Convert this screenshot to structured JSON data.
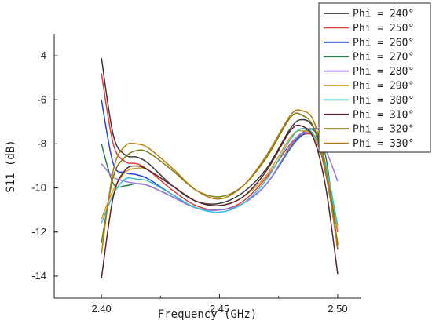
{
  "chart_data": {
    "type": "line",
    "title": "",
    "xlabel": "Frequency (GHz)",
    "ylabel": "S11 (dB)",
    "xlim": [
      2.38,
      2.51
    ],
    "ylim": [
      -15,
      -3
    ],
    "x_ticks": [
      2.4,
      2.45,
      2.5
    ],
    "x_tick_labels": [
      "2.40",
      "2.45",
      "2.50"
    ],
    "y_ticks": [
      -4,
      -6,
      -8,
      -10,
      -12,
      -14
    ],
    "y_tick_labels": [
      "-4",
      "-6",
      "-8",
      "-10",
      "-12",
      "-14"
    ],
    "legend_position": "top-right",
    "grid": false,
    "x": [
      2.4,
      2.405,
      2.41,
      2.415,
      2.42,
      2.43,
      2.44,
      2.45,
      2.46,
      2.47,
      2.48,
      2.485,
      2.49,
      2.495,
      2.5
    ],
    "series": [
      {
        "name": "Phi = 240°",
        "color": "#3a3a3a",
        "values": [
          -4.1,
          -7.6,
          -8.5,
          -8.6,
          -8.9,
          -9.9,
          -10.6,
          -10.7,
          -10.2,
          -9.1,
          -7.3,
          -6.9,
          -7.3,
          -9.0,
          -12.6
        ]
      },
      {
        "name": "Phi = 250°",
        "color": "#e03c3c",
        "values": [
          -4.8,
          -8.0,
          -8.8,
          -8.9,
          -9.2,
          -10.1,
          -10.8,
          -11.0,
          -10.6,
          -9.5,
          -8.0,
          -7.6,
          -7.7,
          -9.2,
          -12.0
        ]
      },
      {
        "name": "Phi = 260°",
        "color": "#2346d6",
        "values": [
          -6.0,
          -8.9,
          -9.3,
          -9.4,
          -9.6,
          -10.3,
          -10.9,
          -11.0,
          -10.7,
          -9.8,
          -8.2,
          -7.6,
          -7.3,
          -7.5,
          -7.8
        ]
      },
      {
        "name": "Phi = 270°",
        "color": "#2e7d50",
        "values": [
          -8.0,
          -9.8,
          -9.9,
          -9.8,
          -9.9,
          -10.4,
          -10.9,
          -11.0,
          -10.7,
          -9.8,
          -8.2,
          -7.5,
          -7.4,
          -8.6,
          -12.8
        ]
      },
      {
        "name": "Phi = 280°",
        "color": "#9b72e8",
        "values": [
          -8.9,
          -9.5,
          -9.7,
          -9.8,
          -9.9,
          -10.4,
          -10.9,
          -11.0,
          -10.7,
          -9.8,
          -8.1,
          -7.5,
          -7.6,
          -8.3,
          -9.7
        ]
      },
      {
        "name": "Phi = 290°",
        "color": "#d4a21a",
        "values": [
          -11.4,
          -10.1,
          -9.3,
          -9.1,
          -9.2,
          -9.9,
          -10.6,
          -10.8,
          -10.4,
          -9.4,
          -7.7,
          -7.4,
          -7.7,
          -9.0,
          -11.9
        ]
      },
      {
        "name": "Phi = 300°",
        "color": "#39c1d4",
        "values": [
          -11.6,
          -10.3,
          -9.6,
          -9.6,
          -9.7,
          -10.3,
          -10.9,
          -11.1,
          -10.7,
          -9.6,
          -7.8,
          -7.3,
          -7.6,
          -9.0,
          -11.7
        ]
      },
      {
        "name": "Phi = 310°",
        "color": "#5a2430",
        "values": [
          -14.1,
          -10.4,
          -9.2,
          -9.0,
          -9.2,
          -9.9,
          -10.6,
          -10.8,
          -10.4,
          -9.2,
          -7.4,
          -7.2,
          -7.8,
          -10.0,
          -13.9
        ]
      },
      {
        "name": "Phi = 320°",
        "color": "#7a7a14",
        "values": [
          -12.5,
          -9.5,
          -8.6,
          -8.3,
          -8.4,
          -9.2,
          -10.1,
          -10.4,
          -9.9,
          -8.6,
          -6.8,
          -6.7,
          -7.3,
          -9.4,
          -12.5
        ]
      },
      {
        "name": "Phi = 330°",
        "color": "#b87d0a",
        "values": [
          -13.0,
          -9.2,
          -8.1,
          -8.0,
          -8.2,
          -9.1,
          -10.1,
          -10.5,
          -9.9,
          -8.5,
          -6.7,
          -6.5,
          -7.0,
          -9.2,
          -12.8
        ]
      }
    ]
  }
}
